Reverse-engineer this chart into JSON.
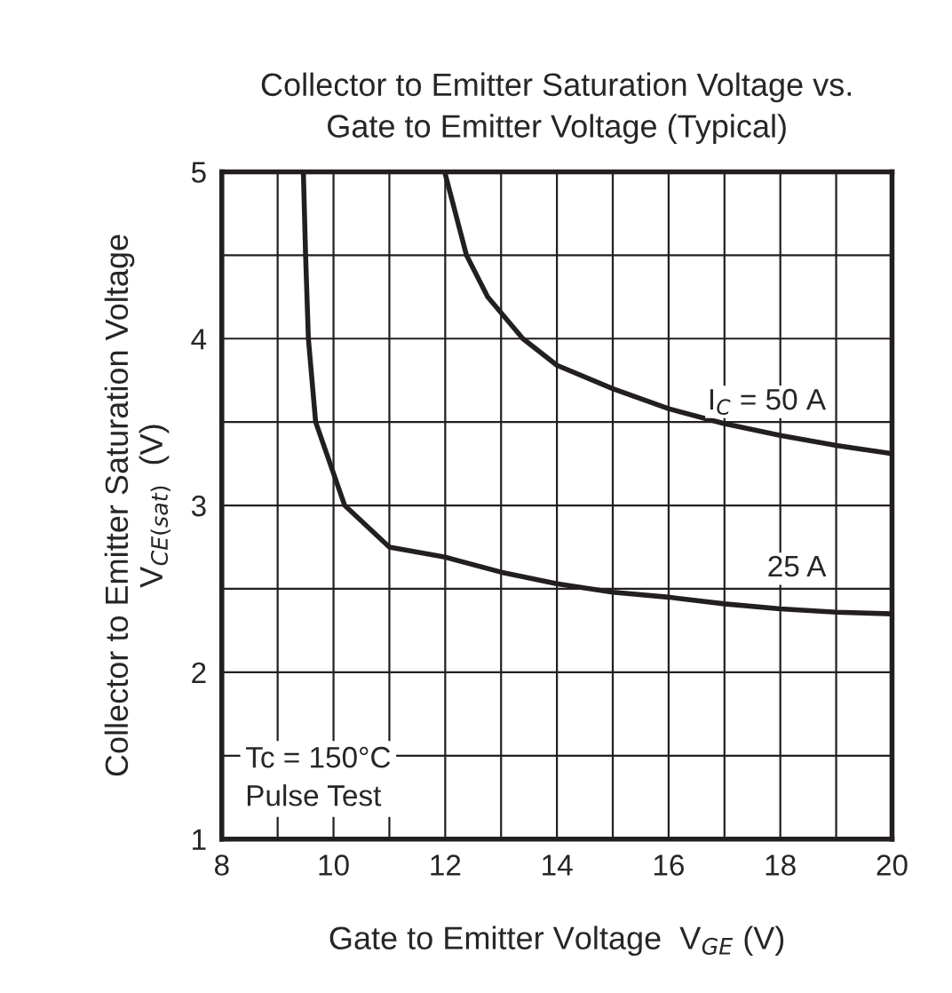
{
  "chart_data": {
    "type": "line",
    "title": "Collector to Emitter Saturation Voltage vs.\nGate to Emitter Voltage (Typical)",
    "xlabel": "Gate to Emitter Voltage  V$_{GE}$ (V)",
    "ylabel": "Collector to Emitter Saturation Voltage\nV$_{CE(sat)}$  (V)",
    "xlim": [
      8,
      20
    ],
    "xticks": [
      8,
      {
        "value": 9,
        "label": null
      },
      10,
      {
        "value": 11,
        "label": null
      },
      12,
      {
        "value": 13,
        "label": null
      },
      14,
      {
        "value": 15,
        "label": null
      },
      16,
      {
        "value": 17,
        "label": null
      },
      18,
      {
        "value": 19,
        "label": null
      },
      20
    ],
    "ylim": [
      1,
      5
    ],
    "yticks": [
      1,
      {
        "value": 1.5,
        "label": null
      },
      2,
      {
        "value": 2.5,
        "label": null
      },
      3,
      {
        "value": 3.5,
        "label": null
      },
      4,
      {
        "value": 4.5,
        "label": null
      },
      5
    ],
    "grid": true,
    "marker": "none",
    "line_style": "solid",
    "annotations": [
      "Tc = 150°C\nPulse Test"
    ],
    "series": [
      {
        "name": "I$_{C}$ = 50 A",
        "color": "#231f20",
        "x": [
          11.99,
          12.38,
          12.76,
          13.39,
          14,
          15,
          16,
          17,
          18,
          19,
          20
        ],
        "values": [
          5,
          4.5,
          4.25,
          4,
          3.84,
          3.7,
          3.58,
          3.49,
          3.42,
          3.36,
          3.31
        ]
      },
      {
        "name": "25 A",
        "color": "#231f20",
        "x": [
          9.46,
          9.5,
          9.55,
          9.68,
          10.2,
          11,
          12,
          13,
          14,
          15,
          16,
          17,
          18,
          19,
          20
        ],
        "values": [
          5,
          4.5,
          4,
          3.5,
          3,
          2.75,
          2.69,
          2.6,
          2.53,
          2.48,
          2.45,
          2.41,
          2.38,
          2.36,
          2.35
        ]
      }
    ]
  }
}
